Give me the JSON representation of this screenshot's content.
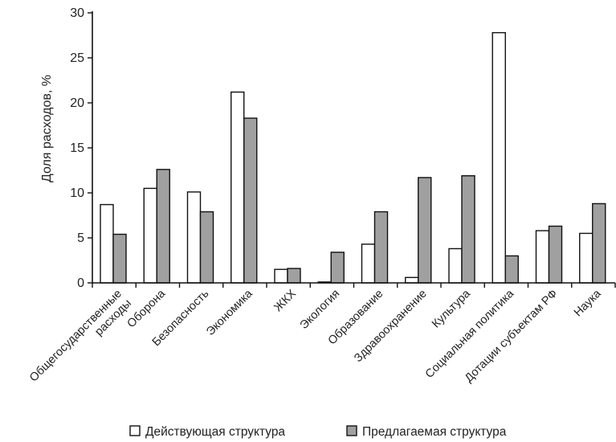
{
  "chart_data": {
    "type": "bar",
    "title": "",
    "xlabel": "",
    "ylabel": "Доля расходов, %",
    "ylim": [
      0,
      30
    ],
    "yticks": [
      0,
      5,
      10,
      15,
      20,
      25,
      30
    ],
    "grid": false,
    "legend_position": "bottom",
    "categories": [
      "Общегосударственные расходы",
      "Оборона",
      "Безопасность",
      "Экономика",
      "ЖКХ",
      "Экология",
      "Образование",
      "Здравоохранение",
      "Культура",
      "Социальная политика",
      "Дотации субъектам РФ",
      "Наука"
    ],
    "series": [
      {
        "name": "Действующая структура",
        "color": "#ffffff",
        "values": [
          8.7,
          10.5,
          10.1,
          21.2,
          1.5,
          0.1,
          4.3,
          0.6,
          3.8,
          27.8,
          5.8,
          5.5
        ]
      },
      {
        "name": "Предлагаемая структура",
        "color": "#a0a0a0",
        "values": [
          5.4,
          12.6,
          7.9,
          18.3,
          1.6,
          3.4,
          7.9,
          11.7,
          11.9,
          3.0,
          6.3,
          8.8
        ]
      }
    ]
  }
}
